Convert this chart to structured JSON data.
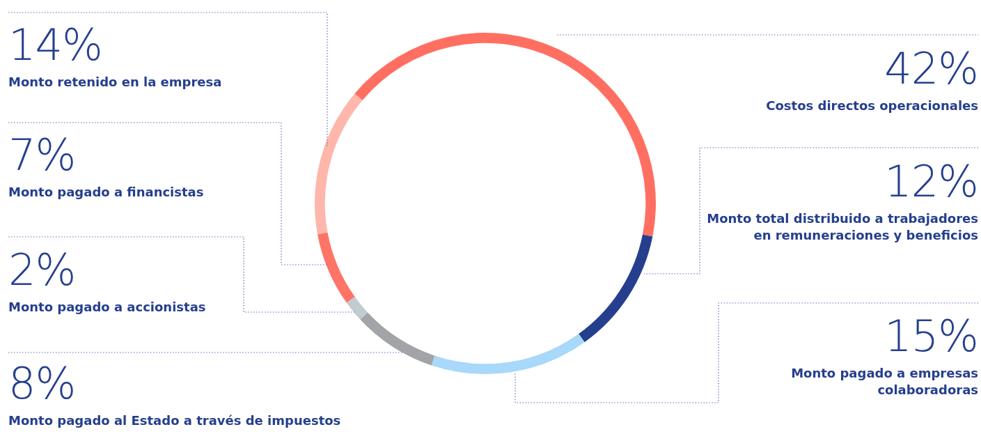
{
  "chart_data": {
    "type": "donut",
    "categories": [
      "Costos directos operacionales",
      "Monto total distribuido a trabajadores en remuneraciones y beneficios",
      "Monto pagado a empresas colaboradoras",
      "Monto pagado al Estado a través de impuestos",
      "Monto pagado a accionistas",
      "Monto pagado a financistas",
      "Monto retenido en la empresa"
    ],
    "values": [
      42,
      12,
      15,
      8,
      2,
      7,
      14
    ],
    "value_labels": [
      "42%",
      "12%",
      "15%",
      "8%",
      "2%",
      "7%",
      "14%"
    ],
    "colors": [
      "#ff6f61",
      "#253f8e",
      "#a8d8fa",
      "#a2a4a7",
      "#c1cbd0",
      "#ff7466",
      "#ffb6ab"
    ],
    "legend": false
  }
}
